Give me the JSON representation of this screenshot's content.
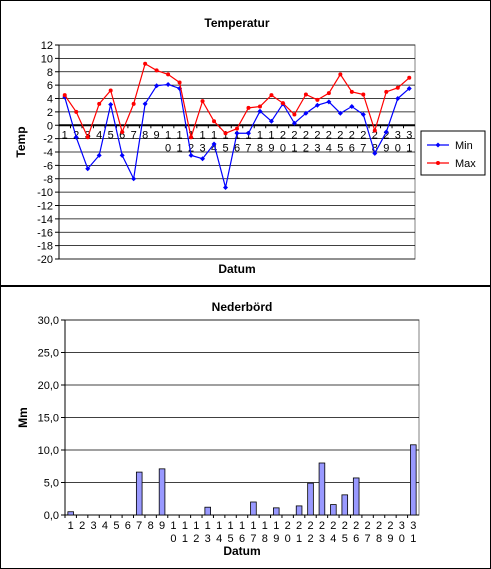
{
  "chart_data": [
    {
      "type": "line",
      "title": "Temperatur",
      "xlabel": "Datum",
      "ylabel": "Temp",
      "ylim": [
        -20,
        12
      ],
      "ytick_step": 2,
      "grid": true,
      "legend": "right",
      "categories": [
        "1",
        "2",
        "3",
        "4",
        "5",
        "6",
        "7",
        "8",
        "9",
        "10",
        "11",
        "12",
        "13",
        "14",
        "15",
        "16",
        "17",
        "18",
        "19",
        "20",
        "21",
        "22",
        "23",
        "24",
        "25",
        "26",
        "27",
        "28",
        "29",
        "30",
        "31"
      ],
      "series": [
        {
          "name": "Min",
          "color": "#0000ff",
          "marker": "diamond",
          "values": [
            4.2,
            -1.8,
            -6.5,
            -4.5,
            3.1,
            -4.5,
            -8.0,
            3.2,
            5.9,
            6.1,
            5.5,
            -4.5,
            -5.0,
            -2.8,
            -9.3,
            -1.2,
            -1.2,
            2.1,
            0.6,
            3.2,
            0.3,
            1.8,
            3.0,
            3.5,
            1.8,
            2.8,
            1.6,
            -4.2,
            -1.0,
            4.0,
            5.5
          ]
        },
        {
          "name": "Max",
          "color": "#ff0000",
          "marker": "circle",
          "values": [
            4.5,
            2.0,
            -1.8,
            3.2,
            5.2,
            -1.0,
            3.2,
            9.2,
            8.2,
            7.6,
            6.4,
            -1.8,
            3.6,
            0.6,
            -1.2,
            -0.5,
            2.6,
            2.8,
            4.5,
            3.3,
            1.6,
            4.6,
            3.8,
            4.8,
            7.6,
            5.0,
            4.6,
            -0.8,
            5.0,
            5.6,
            7.1
          ]
        }
      ]
    },
    {
      "type": "bar",
      "title": "Nederbörd",
      "xlabel": "Datum",
      "ylabel": "Mm",
      "ylim": [
        0,
        30
      ],
      "ytick_step": 5,
      "ytick_format": "0.0",
      "grid": true,
      "bar_color": "#9999ff",
      "categories": [
        "1",
        "2",
        "3",
        "4",
        "5",
        "6",
        "7",
        "8",
        "9",
        "10",
        "11",
        "12",
        "13",
        "14",
        "15",
        "16",
        "17",
        "18",
        "19",
        "20",
        "21",
        "22",
        "23",
        "24",
        "25",
        "26",
        "27",
        "28",
        "29",
        "30",
        "31"
      ],
      "values": [
        0.5,
        0,
        0,
        0,
        0,
        0,
        6.6,
        0,
        7.1,
        0,
        0,
        0,
        1.2,
        0,
        0,
        0,
        2.0,
        0,
        1.1,
        0,
        1.4,
        4.9,
        8.0,
        1.6,
        3.1,
        5.7,
        0,
        0,
        0,
        0,
        10.8
      ]
    }
  ]
}
